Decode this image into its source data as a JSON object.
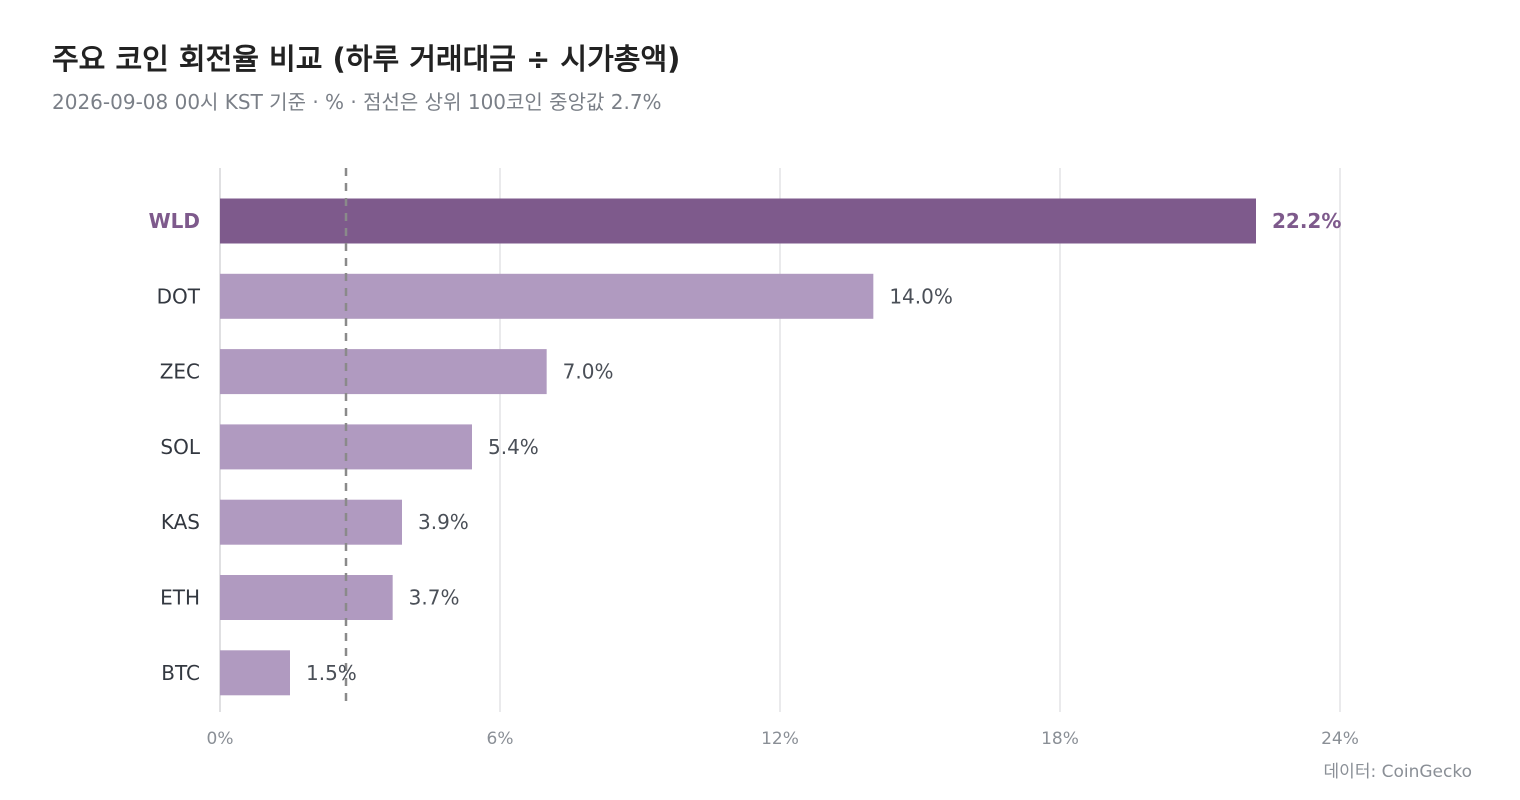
{
  "header": {
    "title": "주요 코인 회전율 비교 (하루 거래대금 ÷ 시가총액)",
    "subtitle": "2026-09-08 00시 KST 기준 · % · 점선은 상위 100코인 중앙값 2.7%"
  },
  "footer": {
    "source": "데이터: CoinGecko"
  },
  "colors": {
    "highlight": "#7e5a8c",
    "bar": "#b09ac0",
    "grid": "#e3e3e6",
    "reference_line": "#8a8a8a"
  },
  "chart_data": {
    "type": "bar",
    "orientation": "horizontal",
    "categories": [
      "WLD",
      "DOT",
      "ZEC",
      "SOL",
      "KAS",
      "ETH",
      "BTC"
    ],
    "values": [
      22.2,
      14.0,
      7.0,
      5.4,
      3.9,
      3.7,
      1.5
    ],
    "value_labels": [
      "22.2%",
      "14.0%",
      "7.0%",
      "5.4%",
      "3.9%",
      "3.7%",
      "1.5%"
    ],
    "highlight": "WLD",
    "xlim": [
      0,
      24
    ],
    "xticks": [
      0,
      6,
      12,
      18,
      24
    ],
    "xtick_labels": [
      "0%",
      "6%",
      "12%",
      "18%",
      "24%"
    ],
    "reference_line": 2.7,
    "grid": true
  }
}
